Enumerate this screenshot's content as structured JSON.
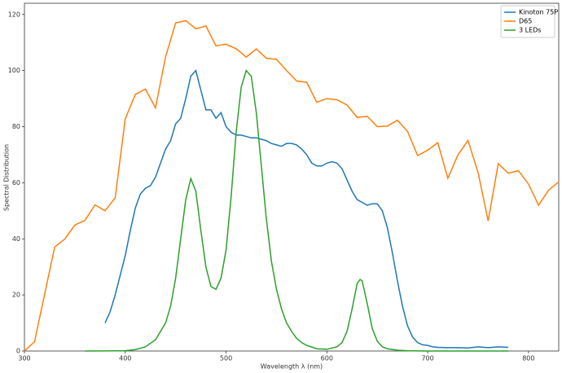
{
  "chart_data": {
    "type": "line",
    "xlabel": "Wavelength λ (nm)",
    "ylabel": "Spectral Distribution",
    "xlim": [
      300,
      830
    ],
    "ylim": [
      0,
      124
    ],
    "xticks": [
      300,
      400,
      500,
      600,
      700,
      800
    ],
    "yticks": [
      0,
      20,
      40,
      60,
      80,
      100,
      120
    ],
    "grid": false,
    "legend": "upper right",
    "series": [
      {
        "name": "Kinoton 75P",
        "color": "#1f77b4",
        "x": [
          380,
          385,
          390,
          395,
          400,
          405,
          410,
          415,
          420,
          425,
          430,
          435,
          440,
          445,
          450,
          455,
          460,
          465,
          470,
          475,
          480,
          485,
          490,
          495,
          500,
          505,
          510,
          515,
          520,
          525,
          530,
          535,
          540,
          545,
          550,
          555,
          560,
          565,
          570,
          575,
          580,
          585,
          590,
          595,
          600,
          605,
          610,
          615,
          620,
          625,
          630,
          635,
          640,
          645,
          650,
          655,
          660,
          665,
          670,
          675,
          680,
          685,
          690,
          695,
          700,
          705,
          710,
          720,
          730,
          740,
          750,
          760,
          770,
          780
        ],
        "values": [
          10,
          14,
          20,
          27,
          34,
          43,
          51,
          56,
          58,
          59,
          62,
          67,
          72,
          75,
          81,
          83,
          90,
          98,
          100,
          93,
          86,
          86,
          83,
          85,
          80,
          78,
          77,
          77,
          76.5,
          76,
          76,
          75.5,
          75,
          74,
          73.5,
          73,
          74,
          74,
          73.5,
          72,
          70,
          67,
          66,
          66,
          67,
          67.5,
          67,
          65,
          61,
          57,
          54,
          53,
          52,
          52.5,
          52.5,
          50,
          44,
          35,
          25,
          16,
          9,
          5,
          3,
          2.2,
          2,
          1.5,
          1.3,
          1.2,
          1.2,
          1.1,
          1.5,
          1.2,
          1.5,
          1.3
        ]
      },
      {
        "name": "D65",
        "color": "#ff7f0e",
        "x": [
          300,
          310,
          320,
          330,
          340,
          350,
          360,
          370,
          380,
          390,
          400,
          410,
          420,
          430,
          440,
          450,
          460,
          470,
          480,
          490,
          500,
          510,
          520,
          530,
          540,
          550,
          560,
          570,
          580,
          590,
          600,
          610,
          620,
          630,
          640,
          650,
          660,
          670,
          680,
          690,
          700,
          710,
          720,
          730,
          740,
          750,
          760,
          770,
          780,
          790,
          800,
          810,
          820,
          830
        ],
        "values": [
          0.03,
          3.3,
          20.2,
          37.1,
          39.9,
          44.9,
          46.6,
          52.1,
          50.0,
          54.6,
          82.8,
          91.5,
          93.4,
          86.7,
          104.9,
          117.0,
          117.8,
          114.9,
          115.9,
          108.8,
          109.4,
          107.8,
          104.8,
          107.7,
          104.4,
          104.0,
          100.0,
          96.3,
          95.8,
          88.7,
          90.0,
          89.6,
          87.7,
          83.3,
          83.7,
          80.0,
          80.2,
          82.3,
          78.3,
          69.7,
          71.6,
          74.3,
          61.6,
          69.9,
          75.1,
          63.6,
          46.4,
          66.8,
          63.4,
          64.3,
          59.5,
          52.0,
          57.4,
          60.3
        ]
      },
      {
        "name": "3 LEDs",
        "color": "#2ca02c",
        "x": [
          360,
          400,
          410,
          420,
          430,
          440,
          445,
          450,
          455,
          460,
          465,
          470,
          475,
          480,
          485,
          490,
          495,
          500,
          505,
          510,
          515,
          520,
          525,
          530,
          535,
          540,
          545,
          550,
          555,
          560,
          565,
          570,
          575,
          580,
          590,
          600,
          610,
          615,
          620,
          625,
          630,
          633,
          635,
          640,
          645,
          650,
          655,
          660,
          670,
          680,
          700,
          780
        ],
        "values": [
          0,
          0.1,
          0.5,
          1.5,
          4,
          10,
          16,
          26,
          40,
          54,
          61.5,
          57,
          43,
          30,
          23,
          22,
          26,
          36,
          55,
          78,
          94,
          100,
          98,
          85,
          66,
          47,
          32,
          22,
          15,
          10,
          7,
          4.5,
          3,
          2,
          0.8,
          0.6,
          1.5,
          3,
          7,
          15,
          24,
          25.5,
          25,
          17,
          8,
          3.5,
          1.5,
          0.8,
          0.3,
          0.1,
          0,
          0
        ]
      }
    ]
  }
}
